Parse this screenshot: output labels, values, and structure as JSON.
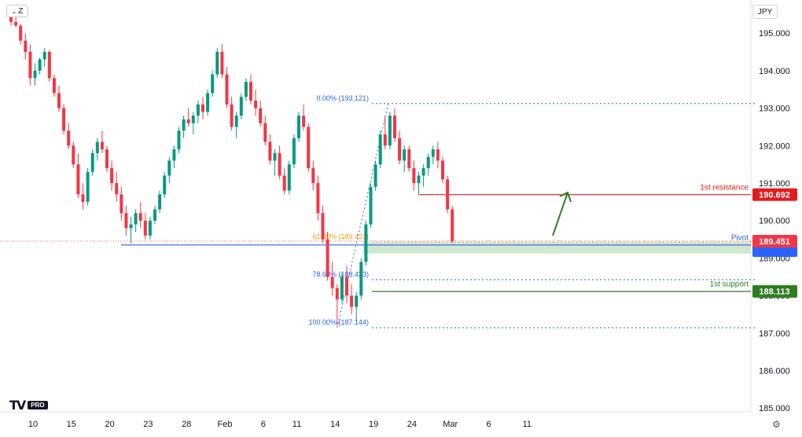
{
  "toolbar": {
    "interval_label": "Z",
    "chevron_icon": "chevron-down-icon"
  },
  "currency_label": "JPY",
  "brand": {
    "logo_text": "TV",
    "badge": "PRO"
  },
  "settings_icon": "gear-icon",
  "chart_data": {
    "type": "candlestick",
    "symbol_currency": "JPY",
    "y_axis": {
      "ticks": [
        "195.000",
        "194.000",
        "193.000",
        "192.000",
        "191.000",
        "190.000",
        "189.000",
        "188.000",
        "187.000",
        "186.000",
        "185.000"
      ],
      "range": [
        184.9,
        195.8
      ]
    },
    "x_axis": {
      "ticks": [
        "10",
        "15",
        "20",
        "23",
        "28",
        "Feb",
        "6",
        "11",
        "14",
        "19",
        "24",
        "Mar",
        "6",
        "11"
      ]
    },
    "candles_ohlc": [
      [
        195.6,
        195.75,
        195.2,
        195.3
      ],
      [
        195.3,
        195.5,
        195.15,
        195.2
      ],
      [
        195.2,
        195.25,
        194.7,
        194.8
      ],
      [
        194.8,
        195.0,
        194.3,
        194.5
      ],
      [
        194.5,
        194.7,
        193.6,
        193.8
      ],
      [
        193.8,
        194.2,
        193.6,
        194.0
      ],
      [
        194.0,
        194.35,
        193.9,
        194.3
      ],
      [
        194.3,
        194.6,
        194.1,
        194.5
      ],
      [
        194.5,
        194.55,
        193.7,
        193.8
      ],
      [
        193.8,
        193.9,
        193.3,
        193.4
      ],
      [
        193.4,
        193.6,
        192.9,
        193.0
      ],
      [
        193.0,
        193.1,
        192.3,
        192.4
      ],
      [
        192.4,
        192.6,
        191.9,
        192.0
      ],
      [
        192.0,
        192.1,
        191.4,
        191.5
      ],
      [
        191.5,
        191.8,
        190.6,
        190.7
      ],
      [
        190.7,
        191.0,
        190.3,
        190.5
      ],
      [
        190.5,
        191.4,
        190.4,
        191.3
      ],
      [
        191.3,
        191.9,
        191.2,
        191.8
      ],
      [
        191.8,
        192.2,
        191.6,
        192.1
      ],
      [
        192.1,
        192.4,
        191.8,
        191.9
      ],
      [
        191.9,
        192.0,
        191.3,
        191.4
      ],
      [
        191.4,
        191.6,
        190.8,
        191.0
      ],
      [
        191.0,
        191.3,
        190.5,
        190.7
      ],
      [
        190.7,
        190.9,
        190.0,
        190.2
      ],
      [
        190.2,
        190.4,
        189.6,
        189.8
      ],
      [
        189.8,
        190.1,
        189.4,
        189.9
      ],
      [
        189.9,
        190.3,
        189.7,
        190.2
      ],
      [
        190.2,
        190.5,
        189.8,
        190.0
      ],
      [
        190.0,
        190.2,
        189.5,
        189.6
      ],
      [
        189.6,
        190.1,
        189.5,
        190.0
      ],
      [
        190.0,
        190.4,
        189.9,
        190.3
      ],
      [
        190.3,
        190.8,
        190.2,
        190.7
      ],
      [
        190.7,
        191.3,
        190.6,
        191.2
      ],
      [
        191.2,
        191.7,
        191.0,
        191.6
      ],
      [
        191.6,
        192.0,
        191.4,
        191.9
      ],
      [
        191.9,
        192.5,
        191.8,
        192.4
      ],
      [
        192.4,
        192.8,
        192.2,
        192.7
      ],
      [
        192.7,
        193.0,
        192.5,
        192.6
      ],
      [
        192.6,
        192.9,
        192.3,
        192.8
      ],
      [
        192.8,
        193.2,
        192.6,
        193.1
      ],
      [
        193.1,
        193.3,
        192.7,
        192.9
      ],
      [
        192.9,
        193.5,
        192.8,
        193.4
      ],
      [
        193.4,
        194.0,
        193.3,
        193.9
      ],
      [
        193.9,
        194.6,
        193.8,
        194.5
      ],
      [
        194.5,
        194.7,
        193.8,
        193.9
      ],
      [
        193.9,
        194.1,
        193.0,
        193.1
      ],
      [
        193.1,
        193.3,
        192.4,
        192.5
      ],
      [
        192.5,
        192.9,
        192.2,
        192.8
      ],
      [
        192.8,
        193.4,
        192.7,
        193.3
      ],
      [
        193.3,
        193.8,
        193.2,
        193.7
      ],
      [
        193.7,
        193.9,
        193.1,
        193.2
      ],
      [
        193.2,
        193.5,
        192.8,
        193.0
      ],
      [
        193.0,
        193.2,
        192.5,
        192.6
      ],
      [
        192.6,
        192.8,
        192.0,
        192.1
      ],
      [
        192.1,
        192.3,
        191.5,
        191.6
      ],
      [
        191.6,
        191.9,
        191.2,
        191.8
      ],
      [
        191.8,
        192.0,
        191.1,
        191.2
      ],
      [
        191.2,
        191.4,
        190.7,
        190.8
      ],
      [
        190.8,
        191.6,
        190.7,
        191.5
      ],
      [
        191.5,
        192.3,
        191.4,
        192.2
      ],
      [
        192.2,
        192.9,
        192.1,
        192.8
      ],
      [
        192.8,
        193.1,
        192.4,
        192.5
      ],
      [
        192.5,
        192.6,
        191.3,
        191.4
      ],
      [
        191.4,
        191.6,
        190.8,
        191.0
      ],
      [
        191.0,
        191.2,
        190.0,
        190.2
      ],
      [
        190.2,
        190.4,
        189.4,
        189.5
      ],
      [
        189.5,
        189.7,
        188.4,
        188.5
      ],
      [
        188.5,
        188.9,
        188.0,
        188.2
      ],
      [
        188.2,
        188.3,
        187.2,
        187.9
      ],
      [
        187.9,
        188.6,
        187.8,
        188.5
      ],
      [
        188.5,
        188.8,
        187.8,
        188.0
      ],
      [
        188.0,
        188.3,
        187.5,
        187.7
      ],
      [
        187.7,
        188.1,
        187.3,
        188.0
      ],
      [
        188.0,
        189.0,
        187.9,
        188.9
      ],
      [
        188.9,
        190.0,
        188.8,
        189.9
      ],
      [
        189.9,
        191.0,
        189.8,
        190.9
      ],
      [
        190.9,
        191.6,
        190.8,
        191.5
      ],
      [
        191.5,
        192.4,
        191.4,
        192.3
      ],
      [
        192.3,
        192.8,
        191.9,
        192.0
      ],
      [
        192.0,
        192.9,
        191.9,
        192.8
      ],
      [
        192.8,
        193.0,
        192.1,
        192.2
      ],
      [
        192.2,
        192.4,
        191.5,
        191.6
      ],
      [
        191.6,
        192.0,
        191.3,
        191.9
      ],
      [
        191.9,
        192.0,
        191.3,
        191.4
      ],
      [
        191.4,
        191.6,
        190.8,
        191.0
      ],
      [
        191.0,
        191.3,
        190.7,
        191.2
      ],
      [
        191.2,
        191.5,
        190.9,
        191.4
      ],
      [
        191.4,
        191.8,
        191.2,
        191.7
      ],
      [
        191.7,
        192.0,
        191.5,
        191.9
      ],
      [
        191.9,
        192.1,
        191.4,
        191.6
      ],
      [
        191.6,
        191.7,
        191.0,
        191.1
      ],
      [
        191.1,
        191.2,
        190.2,
        190.3
      ],
      [
        190.3,
        190.4,
        189.4,
        189.45
      ]
    ],
    "x_tick_candle_index": [
      0,
      8,
      16,
      24,
      32,
      40,
      48,
      55,
      63,
      71,
      79,
      87,
      95,
      103
    ],
    "fibonacci": [
      {
        "label": "0.00% (193.121)",
        "level": 193.121
      },
      {
        "label": "61.80% (189.427)",
        "level": 189.427
      },
      {
        "label": "78.60% (188.423)",
        "level": 188.423
      },
      {
        "label": "100.00% (187.144)",
        "level": 187.144
      }
    ],
    "levels": [
      {
        "label": "1st resistance",
        "value": 190.692,
        "price_tag": "190.692",
        "color": "#e21b1b"
      },
      {
        "label": "Pivot",
        "value": 189.35,
        "price_tag": "189.451",
        "color": "#2962ff"
      },
      {
        "label": "1st support",
        "value": 188.113,
        "price_tag": "188.113",
        "color": "#2e7d1f"
      }
    ],
    "current_price": "189.451",
    "colors": {
      "up": "#089981",
      "down": "#f23645",
      "fib": "#2962ff",
      "fib_golden": "#ff9800",
      "arrow": "#2e7d1f",
      "zone": "#cfe8cf"
    }
  }
}
